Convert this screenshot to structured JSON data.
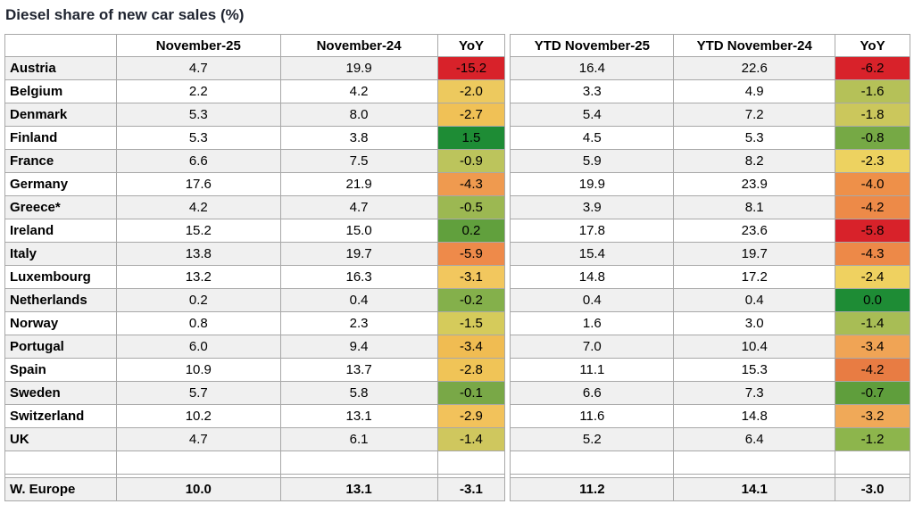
{
  "title": "Diesel share of new car sales (%)",
  "style": {
    "border_color": "#a8a8a8",
    "stripe_color": "#f0f0f0",
    "red": "#d8222a",
    "dark_green": "#1e8c35"
  },
  "chart_data": {
    "type": "table",
    "title": "Diesel share of new car sales (%)",
    "columns": [
      "",
      "November-25",
      "November-24",
      "YoY",
      "YTD November-25",
      "YTD November-24",
      "YoY"
    ],
    "rows": [
      {
        "country": "Austria",
        "nov25": "4.7",
        "nov24": "19.9",
        "yoy_m": "-15.2",
        "yoy_m_color": "#d8222a",
        "ytd25": "16.4",
        "ytd24": "22.6",
        "yoy_ytd": "-6.2",
        "yoy_ytd_color": "#d8222a"
      },
      {
        "country": "Belgium",
        "nov25": "2.2",
        "nov24": "4.2",
        "yoy_m": "-2.0",
        "yoy_m_color": "#edc95e",
        "ytd25": "3.3",
        "ytd24": "4.9",
        "yoy_ytd": "-1.6",
        "yoy_ytd_color": "#b5c158"
      },
      {
        "country": "Denmark",
        "nov25": "5.3",
        "nov24": "8.0",
        "yoy_m": "-2.7",
        "yoy_m_color": "#f0c156",
        "ytd25": "5.4",
        "ytd24": "7.2",
        "yoy_ytd": "-1.8",
        "yoy_ytd_color": "#cbc75c"
      },
      {
        "country": "Finland",
        "nov25": "5.3",
        "nov24": "3.8",
        "yoy_m": "1.5",
        "yoy_m_color": "#1e8c35",
        "ytd25": "4.5",
        "ytd24": "5.3",
        "yoy_ytd": "-0.8",
        "yoy_ytd_color": "#76a945"
      },
      {
        "country": "France",
        "nov25": "6.6",
        "nov24": "7.5",
        "yoy_m": "-0.9",
        "yoy_m_color": "#bcc45c",
        "ytd25": "5.9",
        "ytd24": "8.2",
        "yoy_ytd": "-2.3",
        "yoy_ytd_color": "#edd260"
      },
      {
        "country": "Germany",
        "nov25": "17.6",
        "nov24": "21.9",
        "yoy_m": "-4.3",
        "yoy_m_color": "#ef9a4f",
        "ytd25": "19.9",
        "ytd24": "23.9",
        "yoy_ytd": "-4.0",
        "yoy_ytd_color": "#ee9049"
      },
      {
        "country": "Greece*",
        "nov25": "4.2",
        "nov24": "4.7",
        "yoy_m": "-0.5",
        "yoy_m_color": "#9cb852",
        "ytd25": "3.9",
        "ytd24": "8.1",
        "yoy_ytd": "-4.2",
        "yoy_ytd_color": "#ed8a48"
      },
      {
        "country": "Ireland",
        "nov25": "15.2",
        "nov24": "15.0",
        "yoy_m": "0.2",
        "yoy_m_color": "#61a03d",
        "ytd25": "17.8",
        "ytd24": "23.6",
        "yoy_ytd": "-5.8",
        "yoy_ytd_color": "#d8222a"
      },
      {
        "country": "Italy",
        "nov25": "13.8",
        "nov24": "19.7",
        "yoy_m": "-5.9",
        "yoy_m_color": "#ee8a4a",
        "ytd25": "15.4",
        "ytd24": "19.7",
        "yoy_ytd": "-4.3",
        "yoy_ytd_color": "#ed8948"
      },
      {
        "country": "Luxembourg",
        "nov25": "13.2",
        "nov24": "16.3",
        "yoy_m": "-3.1",
        "yoy_m_color": "#f2c75e",
        "ytd25": "14.8",
        "ytd24": "17.2",
        "yoy_ytd": "-2.4",
        "yoy_ytd_color": "#efd160"
      },
      {
        "country": "Netherlands",
        "nov25": "0.2",
        "nov24": "0.4",
        "yoy_m": "-0.2",
        "yoy_m_color": "#84b04b",
        "ytd25": "0.4",
        "ytd24": "0.4",
        "yoy_ytd": "0.0",
        "yoy_ytd_color": "#1e8c35"
      },
      {
        "country": "Norway",
        "nov25": "0.8",
        "nov24": "2.3",
        "yoy_m": "-1.5",
        "yoy_m_color": "#d5cb5b",
        "ytd25": "1.6",
        "ytd24": "3.0",
        "yoy_ytd": "-1.4",
        "yoy_ytd_color": "#a8bd55"
      },
      {
        "country": "Portugal",
        "nov25": "6.0",
        "nov24": "9.4",
        "yoy_m": "-3.4",
        "yoy_m_color": "#f0bc52",
        "ytd25": "7.0",
        "ytd24": "10.4",
        "yoy_ytd": "-3.4",
        "yoy_ytd_color": "#f0a455"
      },
      {
        "country": "Spain",
        "nov25": "10.9",
        "nov24": "13.7",
        "yoy_m": "-2.8",
        "yoy_m_color": "#f0c457",
        "ytd25": "11.1",
        "ytd24": "15.3",
        "yoy_ytd": "-4.2",
        "yoy_ytd_color": "#e87c43"
      },
      {
        "country": "Sweden",
        "nov25": "5.7",
        "nov24": "5.8",
        "yoy_m": "-0.1",
        "yoy_m_color": "#79a847",
        "ytd25": "6.6",
        "ytd24": "7.3",
        "yoy_ytd": "-0.7",
        "yoy_ytd_color": "#5f9e3c"
      },
      {
        "country": "Switzerland",
        "nov25": "10.2",
        "nov24": "13.1",
        "yoy_m": "-2.9",
        "yoy_m_color": "#f2c25b",
        "ytd25": "11.6",
        "ytd24": "14.8",
        "yoy_ytd": "-3.2",
        "yoy_ytd_color": "#f0a958"
      },
      {
        "country": "UK",
        "nov25": "4.7",
        "nov24": "6.1",
        "yoy_m": "-1.4",
        "yoy_m_color": "#cfc75e",
        "ytd25": "5.2",
        "ytd24": "6.4",
        "yoy_ytd": "-1.2",
        "yoy_ytd_color": "#8db54c"
      }
    ],
    "empty_row": {
      "country": "",
      "nov25": "",
      "nov24": "",
      "yoy_m": "",
      "ytd25": "",
      "ytd24": "",
      "yoy_ytd": ""
    },
    "total": {
      "country": "W. Europe",
      "nov25": "10.0",
      "nov24": "13.1",
      "yoy_m": "-3.1",
      "ytd25": "11.2",
      "ytd24": "14.1",
      "yoy_ytd": "-3.0"
    }
  }
}
